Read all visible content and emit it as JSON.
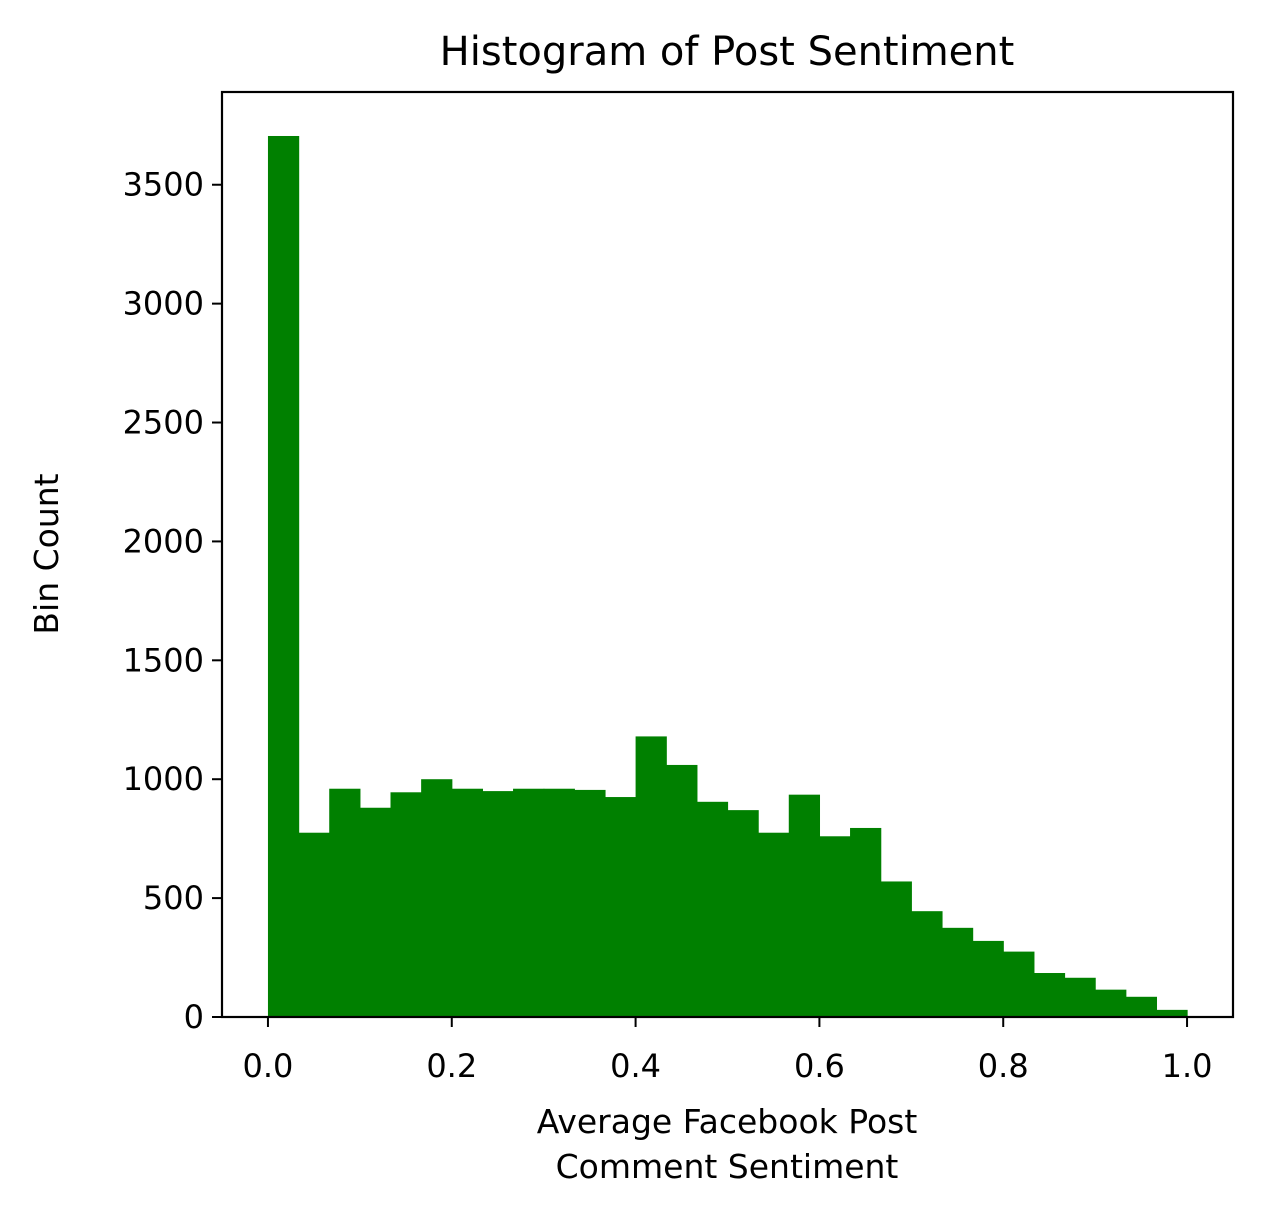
{
  "chart_data": {
    "type": "bar",
    "title": "Histogram of Post Sentiment",
    "xlabel_lines": [
      "Average Facebook Post",
      "Comment Sentiment"
    ],
    "ylabel": "Bin Count",
    "bar_color": "#008000",
    "xlim": [
      -0.05,
      1.05
    ],
    "ylim": [
      0,
      3890
    ],
    "x_ticks": [
      {
        "value": 0.0,
        "label": "0.0"
      },
      {
        "value": 0.2,
        "label": "0.2"
      },
      {
        "value": 0.4,
        "label": "0.4"
      },
      {
        "value": 0.6,
        "label": "0.6"
      },
      {
        "value": 0.8,
        "label": "0.8"
      },
      {
        "value": 1.0,
        "label": "1.0"
      }
    ],
    "y_ticks": [
      {
        "value": 0,
        "label": "0"
      },
      {
        "value": 500,
        "label": "500"
      },
      {
        "value": 1000,
        "label": "1000"
      },
      {
        "value": 1500,
        "label": "1500"
      },
      {
        "value": 2000,
        "label": "2000"
      },
      {
        "value": 2500,
        "label": "2500"
      },
      {
        "value": 3000,
        "label": "3000"
      },
      {
        "value": 3500,
        "label": "3500"
      }
    ],
    "bin_range": [
      0.0,
      1.0
    ],
    "bin_count": 30,
    "values": [
      3705,
      775,
      960,
      880,
      945,
      1000,
      960,
      950,
      960,
      960,
      955,
      925,
      1180,
      1060,
      905,
      870,
      775,
      935,
      760,
      795,
      570,
      445,
      375,
      320,
      275,
      185,
      165,
      115,
      85,
      30
    ]
  }
}
